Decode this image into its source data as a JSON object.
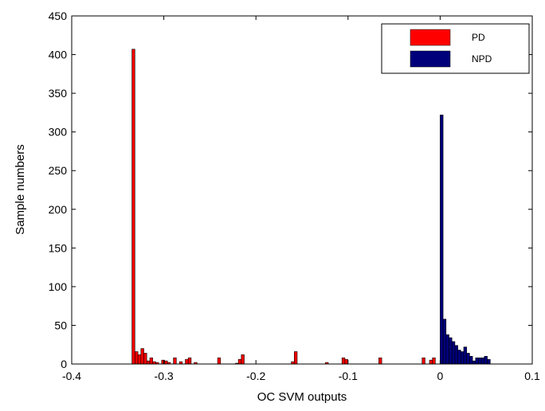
{
  "chart_data": {
    "type": "bar",
    "subtype": "histogram",
    "title": "",
    "xlabel": "OC SVM outputs",
    "ylabel": "Sample numbers",
    "xlim": [
      -0.4,
      0.1
    ],
    "ylim": [
      0,
      450
    ],
    "x_ticks": [
      -0.4,
      -0.3,
      -0.2,
      -0.1,
      0,
      0.1
    ],
    "x_tick_labels": [
      "-0.4",
      "-0.3",
      "-0.2",
      "-0.1",
      "0",
      "0.1"
    ],
    "y_ticks": [
      0,
      50,
      100,
      150,
      200,
      250,
      300,
      350,
      400,
      450
    ],
    "y_tick_labels": [
      "0",
      "50",
      "100",
      "150",
      "200",
      "250",
      "300",
      "350",
      "400",
      "450"
    ],
    "bin_width": 0.0032,
    "grid": false,
    "legend_position": "top-right",
    "series": [
      {
        "name": "PD",
        "color": "#ff0000",
        "bins": [
          {
            "x": -0.333,
            "y": 407
          },
          {
            "x": -0.3297,
            "y": 16
          },
          {
            "x": -0.3265,
            "y": 12
          },
          {
            "x": -0.3233,
            "y": 20
          },
          {
            "x": -0.3201,
            "y": 14
          },
          {
            "x": -0.3169,
            "y": 4
          },
          {
            "x": -0.3136,
            "y": 8
          },
          {
            "x": -0.3104,
            "y": 3
          },
          {
            "x": -0.3072,
            "y": 2
          },
          {
            "x": -0.3008,
            "y": 5
          },
          {
            "x": -0.2976,
            "y": 4
          },
          {
            "x": -0.2944,
            "y": 2
          },
          {
            "x": -0.288,
            "y": 8
          },
          {
            "x": -0.2815,
            "y": 3
          },
          {
            "x": -0.2751,
            "y": 6
          },
          {
            "x": -0.2719,
            "y": 8
          },
          {
            "x": -0.2655,
            "y": 2
          },
          {
            "x": -0.24,
            "y": 8
          },
          {
            "x": -0.2207,
            "y": 1
          },
          {
            "x": -0.2175,
            "y": 6
          },
          {
            "x": -0.2143,
            "y": 12
          },
          {
            "x": -0.16,
            "y": 3
          },
          {
            "x": -0.1568,
            "y": 16
          },
          {
            "x": -0.123,
            "y": 2
          },
          {
            "x": -0.105,
            "y": 8
          },
          {
            "x": -0.1018,
            "y": 6
          },
          {
            "x": -0.065,
            "y": 8
          },
          {
            "x": -0.018,
            "y": 8
          },
          {
            "x": -0.01,
            "y": 5
          },
          {
            "x": -0.0068,
            "y": 8
          }
        ]
      },
      {
        "name": "NPD",
        "color": "#00007a",
        "bins": [
          {
            "x": 0.0016,
            "y": 322
          },
          {
            "x": 0.0048,
            "y": 58
          },
          {
            "x": 0.008,
            "y": 38
          },
          {
            "x": 0.0112,
            "y": 34
          },
          {
            "x": 0.0144,
            "y": 29
          },
          {
            "x": 0.0176,
            "y": 24
          },
          {
            "x": 0.0208,
            "y": 18
          },
          {
            "x": 0.024,
            "y": 16
          },
          {
            "x": 0.0272,
            "y": 22
          },
          {
            "x": 0.0304,
            "y": 14
          },
          {
            "x": 0.0336,
            "y": 10
          },
          {
            "x": 0.0368,
            "y": 4
          },
          {
            "x": 0.04,
            "y": 8
          },
          {
            "x": 0.0432,
            "y": 8
          },
          {
            "x": 0.0464,
            "y": 8
          },
          {
            "x": 0.0496,
            "y": 10
          },
          {
            "x": 0.0528,
            "y": 6
          }
        ]
      }
    ]
  }
}
